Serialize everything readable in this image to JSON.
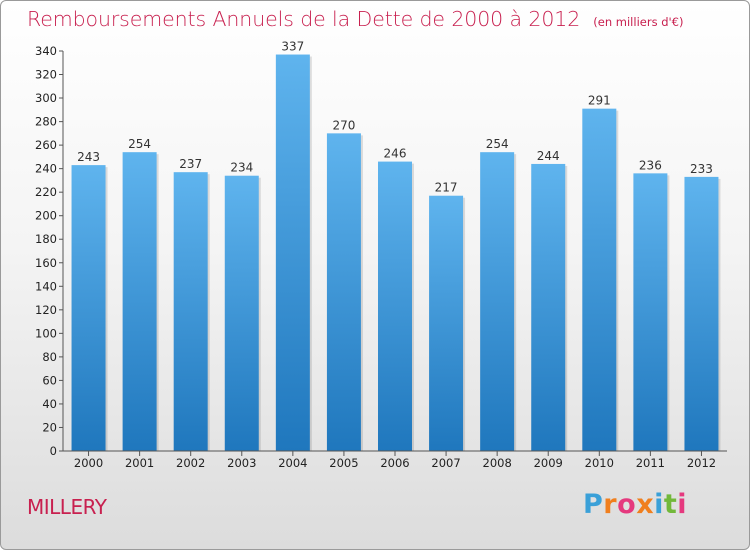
{
  "title": "Remboursements Annuels de la Dette de 2000 à 2012",
  "unit_note": "(en milliers d'€)",
  "commune": "MILLERY",
  "logo": {
    "text": "Proxiti",
    "colors": [
      "#3aa0d8",
      "#f07f1e",
      "#e5397e",
      "#f07f1e",
      "#3aa0d8",
      "#72b83a",
      "#e5397e"
    ]
  },
  "colors": {
    "title": "#c8204f",
    "bar_top": "#5fb4ee",
    "bar_bottom": "#1f77bd",
    "axis": "#555555"
  },
  "chart_data": {
    "type": "bar",
    "categories": [
      "2000",
      "2001",
      "2002",
      "2003",
      "2004",
      "2005",
      "2006",
      "2007",
      "2008",
      "2009",
      "2010",
      "2011",
      "2012"
    ],
    "values": [
      243,
      254,
      237,
      234,
      337,
      270,
      246,
      217,
      254,
      244,
      291,
      236,
      233
    ],
    "ylim": [
      0,
      340
    ],
    "yticks": [
      0,
      20,
      40,
      60,
      80,
      100,
      120,
      140,
      160,
      180,
      200,
      220,
      240,
      260,
      280,
      300,
      320,
      340
    ],
    "title": "Remboursements Annuels de la Dette de 2000 à 2012",
    "xlabel": "",
    "ylabel": "",
    "grid": false
  }
}
